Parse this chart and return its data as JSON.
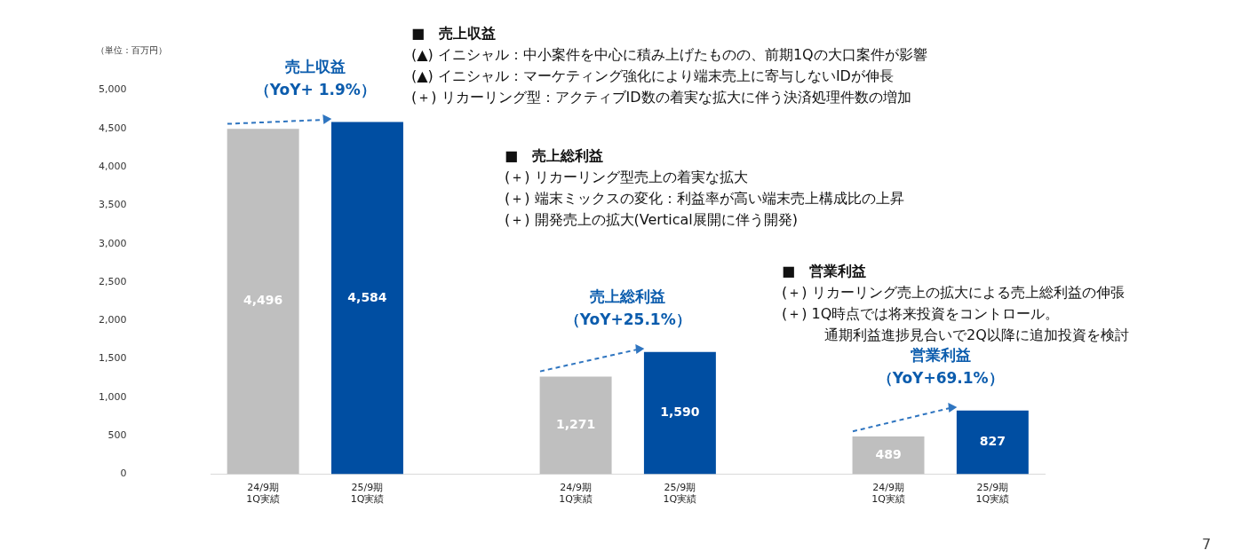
{
  "chart_data": {
    "type": "bar",
    "ylabel": "（単位：百万円）",
    "categories": [
      "24/9期\n1Q実績",
      "25/9期\n1Q実績",
      null,
      "24/9期\n1Q実績",
      "25/9期\n1Q実績",
      null,
      "24/9期\n1Q実績",
      "25/9期\n1Q実績"
    ],
    "values": [
      4496,
      4584,
      null,
      1271,
      1590,
      null,
      489,
      827
    ],
    "value_labels": [
      "4,496",
      "4,584",
      null,
      "1,271",
      "1,590",
      null,
      "489",
      "827"
    ],
    "colors": [
      "#bfbfbf",
      "#004ea2",
      "#ffffff",
      "#bfbfbf",
      "#004ea2",
      "#ffffff",
      "#bfbfbf",
      "#004ea2"
    ],
    "ylim": [
      0,
      5000
    ],
    "yticks": [
      0,
      500,
      {
        "value": 1000,
        "label": "1,000"
      },
      {
        "value": 1500,
        "label": "1,500"
      },
      {
        "value": 2000,
        "label": "2,000"
      },
      {
        "value": 2500,
        "label": "2,500"
      },
      {
        "value": 3000,
        "label": "3,000"
      },
      {
        "value": 3500,
        "label": "3,500"
      },
      {
        "value": 4000,
        "label": "4,000"
      },
      {
        "value": 4500,
        "label": "4,500"
      },
      {
        "value": 5000,
        "label": "5,000"
      }
    ],
    "grid": false,
    "legend": false,
    "annotations": [
      "売上収益",
      "（YoY+ 1.9%）",
      "売上総利益",
      "（YoY+25.1%）",
      "営業利益",
      "（YoY+69.1%）",
      "■　売上収益\n(▲)  イニシャル：中小案件を中心に積み上げたものの、前期1Qの大口案件が影響\n(▲)  イニシャル：マーケティング強化により端末売上に寄与しないIDが伸長\n(＋)  リカーリング型：アクティブID数の着実な拡大に伴う決済処理件数の増加",
      "■　売上総利益\n(＋)  リカーリング型売上の着実な拡大\n(＋)  端末ミックスの変化：利益率が高い端末売上構成比の上昇\n(＋)  開発売上の拡大(Vertical展開に伴う開発)",
      "■　営業利益\n(＋)  リカーリング売上の拡大による売上総利益の伸張\n(＋)  1Q時点では将来投資をコントロール。",
      "通期利益進捗見合いで2Q以降に追加投資を検討",
      "7"
    ]
  }
}
